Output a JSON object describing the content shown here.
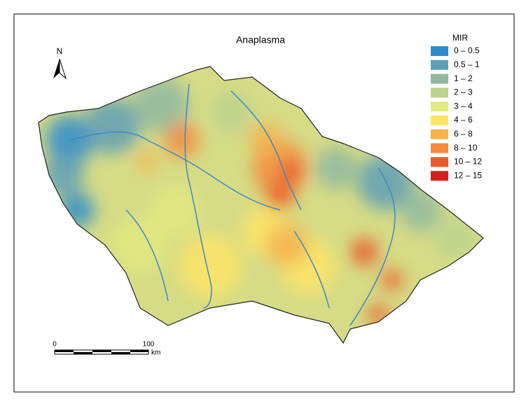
{
  "map": {
    "title": "Anaplasma",
    "north": "N",
    "legend": {
      "title": "MIR",
      "items": [
        {
          "label": "0 – 0.5",
          "color": "#2e8ccb"
        },
        {
          "label": "0.5 – 1",
          "color": "#5f9fb6"
        },
        {
          "label": "1 – 2",
          "color": "#8fb9a0"
        },
        {
          "label": "2 – 3",
          "color": "#bcd18e"
        },
        {
          "label": "3 – 4",
          "color": "#e2e97f"
        },
        {
          "label": "4 – 6",
          "color": "#fde466"
        },
        {
          "label": "6 – 8",
          "color": "#f6b24f"
        },
        {
          "label": "8 – 10",
          "color": "#f58a3c"
        },
        {
          "label": "10 – 12",
          "color": "#ea5a2a"
        },
        {
          "label": "12 – 15",
          "color": "#e31a1c"
        }
      ]
    },
    "scale_bar": {
      "labels": [
        "0",
        "100"
      ],
      "unit": "km"
    }
  }
}
